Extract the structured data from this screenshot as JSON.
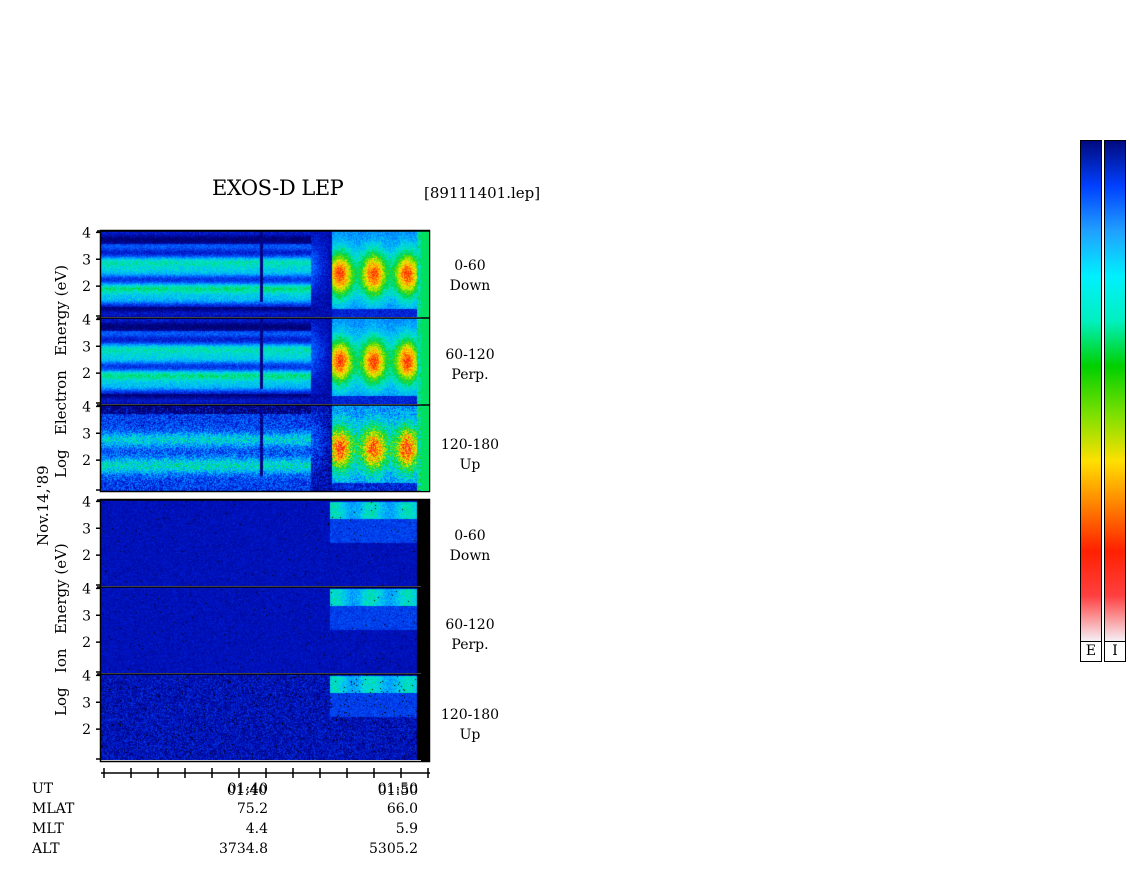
{
  "chart_data": {
    "type": "heatmap",
    "title": "EXOS-D LEP",
    "file_label": "[89111401.lep]",
    "date_label": "Nov.14,'89",
    "electron_ylabel": [
      "Log",
      "Electron",
      "Energy",
      "(eV)"
    ],
    "ion_ylabel": [
      "Log",
      "Ion",
      "Energy",
      "(eV)"
    ],
    "y_ticks": [
      "1",
      "2",
      "3",
      "4"
    ],
    "x_tick_labels": [
      "01:40",
      "01:50"
    ],
    "ephemeris": {
      "row_labels": [
        "UT",
        "MLAT",
        "MLT",
        "ALT"
      ],
      "columns": [
        {
          "ut": "01:40",
          "mlat": "75.2",
          "mlt": "4.4",
          "alt": "3734.8"
        },
        {
          "ut": "01:50",
          "mlat": "66.0",
          "mlt": "5.9",
          "alt": "5305.2"
        }
      ]
    },
    "panels": [
      {
        "species": "Electron",
        "pitch_range": "0-60",
        "direction": "Down",
        "intensity_profile": "electron"
      },
      {
        "species": "Electron",
        "pitch_range": "60-120",
        "direction": "Perp.",
        "intensity_profile": "electron"
      },
      {
        "species": "Electron",
        "pitch_range": "120-180",
        "direction": "Up",
        "intensity_profile": "electron_noisy"
      },
      {
        "species": "Ion",
        "pitch_range": "0-60",
        "direction": "Down",
        "intensity_profile": "ion"
      },
      {
        "species": "Ion",
        "pitch_range": "60-120",
        "direction": "Perp.",
        "intensity_profile": "ion"
      },
      {
        "species": "Ion",
        "pitch_range": "120-180",
        "direction": "Up",
        "intensity_profile": "ion_noisy"
      }
    ],
    "colorbars": [
      "E",
      "I"
    ],
    "colormap": [
      "#f5f0f5",
      "#ff4040",
      "#ff2000",
      "#ff8000",
      "#ffe000",
      "#80e000",
      "#00d000",
      "#00f0c0",
      "#00f0ff",
      "#20a0ff",
      "#0040ff",
      "#000a80"
    ]
  }
}
